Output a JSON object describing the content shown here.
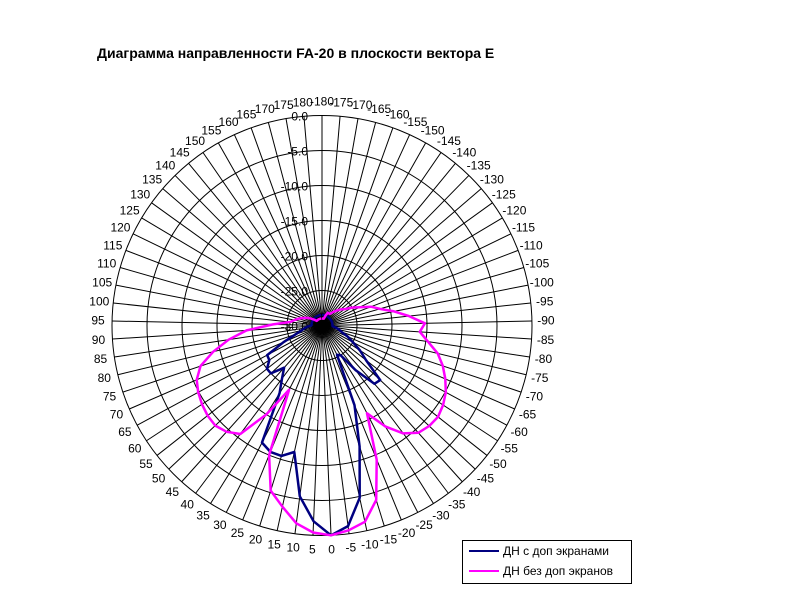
{
  "chart_data": {
    "type": "radar",
    "title": "Диаграмма направленности FA-20 в плоскости вектора E",
    "categories": [
      -180,
      -175,
      -170,
      -165,
      -160,
      -155,
      -150,
      -145,
      -140,
      -135,
      -130,
      -125,
      -120,
      -115,
      -110,
      -105,
      -100,
      -95,
      -90,
      -85,
      -80,
      -75,
      -70,
      -65,
      -60,
      -55,
      -50,
      -45,
      -40,
      -35,
      -30,
      -25,
      -20,
      -15,
      -10,
      -5,
      0,
      5,
      10,
      15,
      20,
      25,
      30,
      35,
      40,
      45,
      50,
      55,
      60,
      65,
      70,
      75,
      80,
      85,
      90,
      95,
      100,
      105,
      110,
      115,
      120,
      125,
      130,
      135,
      140,
      145,
      150,
      155,
      160,
      165,
      170,
      175,
      180
    ],
    "radial_axis": {
      "min": -30,
      "max": 0,
      "step": 5,
      "tick_labels": [
        "-30.0",
        "-25.0",
        "-20.0",
        "-15.0",
        "-10.0",
        "-5.0",
        "0.0"
      ]
    },
    "grid": true,
    "legend_position": "bottom-right",
    "series": [
      {
        "name": "ДН с доп экранами",
        "color": "#000080",
        "values": [
          -28.5,
          -28.5,
          -28.5,
          -28.5,
          -28.5,
          -28.5,
          -28.5,
          -28.5,
          -28.5,
          -28.5,
          -28.5,
          -28.5,
          -28.5,
          -28.5,
          -28.5,
          -28.5,
          -28.5,
          -28.5,
          -28.5,
          -28.5,
          -28,
          -27.5,
          -27,
          -26,
          -25,
          -23.5,
          -22,
          -18.6,
          -18.8,
          -22,
          -25,
          -25.3,
          -17.7,
          -11.9,
          -4.8,
          -1.1,
          0,
          -2,
          -5.4,
          -11.5,
          -10.5,
          -10.5,
          -11.2,
          -18.6,
          -20.5,
          -21.9,
          -20,
          -20,
          -21,
          -21.1,
          -24,
          -26,
          -27,
          -27.5,
          -28,
          -28.5,
          -28.5,
          -28.5,
          -28.5,
          -28.5,
          -28.5,
          -28.5,
          -28.5,
          -28.5,
          -28.5,
          -28.5,
          -28.5,
          -28.5,
          -28.5,
          -28.5,
          -28.5,
          -28.5,
          -28.5
        ]
      },
      {
        "name": "ДН без доп экранов",
        "color": "#FF00FF",
        "values": [
          -29,
          -29,
          -29,
          -29,
          -28.5,
          -28,
          -28,
          -28,
          -27.5,
          -27,
          -26.5,
          -26,
          -25,
          -24,
          -22.5,
          -21.4,
          -19.5,
          -17.5,
          -15.3,
          -16,
          -14.7,
          -13,
          -11.8,
          -10.8,
          -9.9,
          -9.3,
          -8.9,
          -9,
          -9.4,
          -10.7,
          -13,
          -15.9,
          -9.3,
          -3.9,
          -1.3,
          -0.5,
          0,
          -0.4,
          -1.5,
          -3.5,
          -5.3,
          -10,
          -19.7,
          -15,
          -10.6,
          -9.6,
          -9.1,
          -9.2,
          -9.5,
          -9.9,
          -10.5,
          -11.7,
          -14,
          -16.5,
          -19.2,
          -23,
          -25.4,
          -26,
          -26.5,
          -27,
          -27.5,
          -28,
          -28.5,
          -29,
          -29,
          -29,
          -29,
          -29,
          -29,
          -29,
          -29,
          -29,
          -29
        ]
      }
    ]
  }
}
